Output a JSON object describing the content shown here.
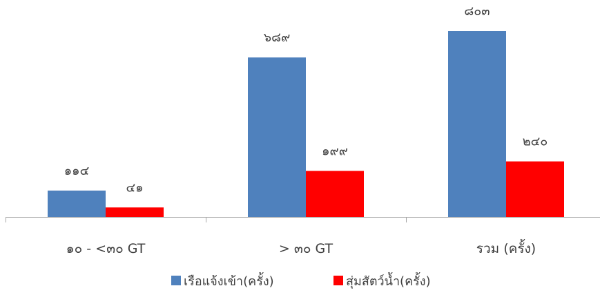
{
  "chart_data": {
    "type": "bar",
    "categories": [
      "๑๐ - <๓๐ GT",
      "> ๓๐ GT",
      "รวม (ครั้ง)"
    ],
    "series": [
      {
        "name": "เรือแจ้งเข้า(ครั้ง)",
        "values": [
          114,
          689,
          803
        ],
        "labels": [
          "๑๑๔",
          "๖๘๙",
          "๘๐๓"
        ],
        "color": "#4F81BD"
      },
      {
        "name": "สุ่มสัตว์น้ำ(ครั้ง)",
        "values": [
          41,
          199,
          240
        ],
        "labels": [
          "๔๑",
          "๑๙๙",
          "๒๔๐"
        ],
        "color": "#FF0000"
      }
    ],
    "title": "",
    "xlabel": "",
    "ylabel": "",
    "ylim": [
      0,
      1000
    ],
    "grid": false,
    "legend_position": "bottom"
  }
}
